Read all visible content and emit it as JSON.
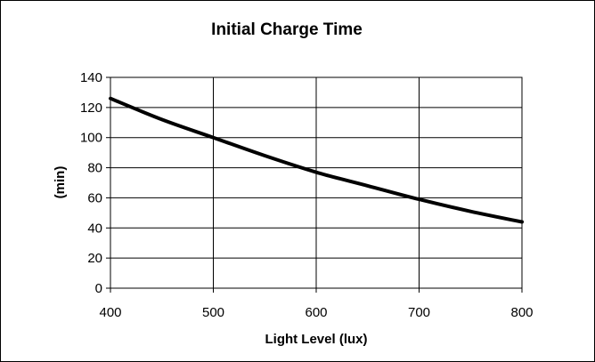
{
  "chart_data": {
    "type": "line",
    "title": "Initial Charge Time",
    "xlabel": "Light Level (lux)",
    "ylabel": "(min)",
    "xlim": [
      400,
      800
    ],
    "ylim": [
      0,
      140
    ],
    "x_ticks": [
      400,
      500,
      600,
      700,
      800
    ],
    "y_ticks": [
      0,
      20,
      40,
      60,
      80,
      100,
      120,
      140
    ],
    "grid": true,
    "legend": "none",
    "series": [
      {
        "x": [
          400,
          450,
          500,
          550,
          600,
          650,
          700,
          750,
          800
        ],
        "y": [
          126,
          112,
          100,
          88,
          77,
          68,
          59,
          51,
          44
        ],
        "color": "#000000"
      }
    ]
  }
}
